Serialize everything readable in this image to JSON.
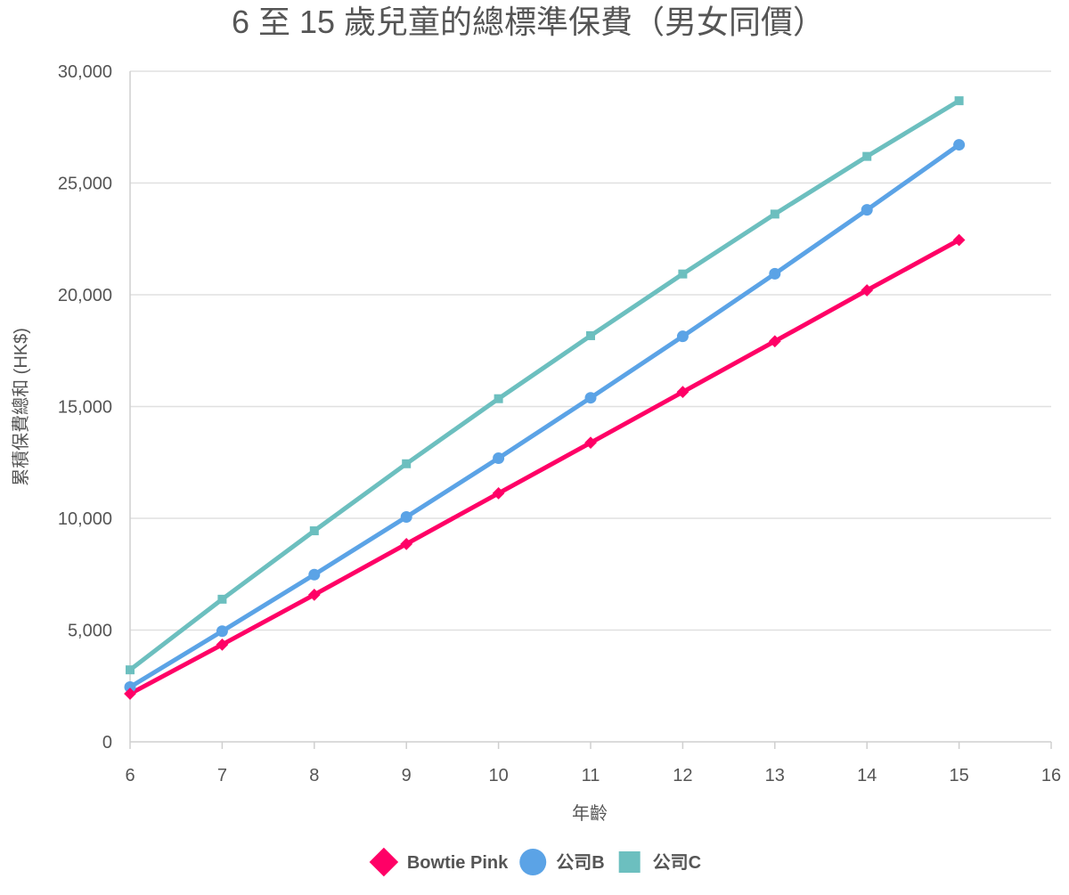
{
  "chart_data": {
    "type": "line",
    "title": "6 至 15 歲兒童的總標準保費（男女同價）",
    "xlabel": "年齡",
    "ylabel": "累積保費總和 (HK$)",
    "xlim": [
      6,
      16
    ],
    "ylim": [
      0,
      30000
    ],
    "x_ticks": [
      "6",
      "7",
      "8",
      "9",
      "10",
      "11",
      "12",
      "13",
      "14",
      "15",
      "16"
    ],
    "y_ticks": [
      "0",
      "5,000",
      "10,000",
      "15,000",
      "20,000",
      "25,000",
      "30,000"
    ],
    "grid": "horizontal",
    "legend_position": "bottom-center",
    "x": [
      6,
      7,
      8,
      9,
      10,
      11,
      12,
      13,
      14,
      15
    ],
    "series": [
      {
        "name": "Bowtie Pink",
        "color": "#ff0066",
        "marker": "diamond",
        "values": [
          2150,
          4350,
          6580,
          8850,
          11120,
          13380,
          15650,
          17920,
          20200,
          22450
        ]
      },
      {
        "name": "公司B",
        "color": "#5ba3e6",
        "marker": "circle",
        "values": [
          2450,
          4950,
          7480,
          10060,
          12690,
          15390,
          18140,
          20940,
          23800,
          26710
        ]
      },
      {
        "name": "公司C",
        "color": "#6cbfbf",
        "marker": "square",
        "values": [
          3220,
          6380,
          9440,
          12440,
          15350,
          18170,
          20930,
          23610,
          26190,
          28680
        ]
      }
    ]
  }
}
